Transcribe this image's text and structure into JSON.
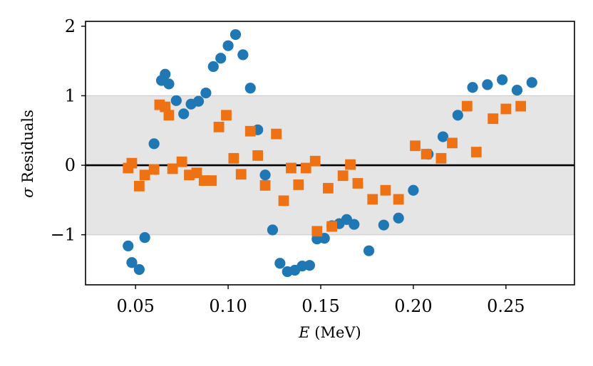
{
  "chart_data": {
    "type": "scatter",
    "title": "",
    "xlabel_var": "E",
    "xlabel_unit": " (MeV)",
    "ylabel_var": "σ",
    "ylabel_text": " Residuals",
    "xlim": [
      0.023,
      0.287
    ],
    "ylim": [
      -1.72,
      2.07
    ],
    "xticks": [
      0.05,
      0.1,
      0.15,
      0.2,
      0.25
    ],
    "xtick_labels": [
      "0.05",
      "0.10",
      "0.15",
      "0.20",
      "0.25"
    ],
    "yticks": [
      -1,
      0,
      1,
      2
    ],
    "ytick_labels": [
      "−1",
      "0",
      "1",
      "2"
    ],
    "band": [
      -1,
      1
    ],
    "band_color": "#e5e5e5",
    "zero_line": 0,
    "grid": false,
    "legend": "none",
    "series": [
      {
        "marker": "circle",
        "color": "#1f77b4",
        "points": [
          [
            0.046,
            -1.16
          ],
          [
            0.048,
            -1.4
          ],
          [
            0.052,
            -1.5
          ],
          [
            0.055,
            -1.04
          ],
          [
            0.06,
            0.31
          ],
          [
            0.064,
            1.22
          ],
          [
            0.066,
            1.31
          ],
          [
            0.068,
            1.17
          ],
          [
            0.072,
            0.93
          ],
          [
            0.076,
            0.74
          ],
          [
            0.08,
            0.88
          ],
          [
            0.084,
            0.92
          ],
          [
            0.088,
            1.04
          ],
          [
            0.092,
            1.42
          ],
          [
            0.096,
            1.54
          ],
          [
            0.1,
            1.72
          ],
          [
            0.104,
            1.88
          ],
          [
            0.108,
            1.59
          ],
          [
            0.112,
            1.11
          ],
          [
            0.116,
            0.51
          ],
          [
            0.12,
            -0.14
          ],
          [
            0.124,
            -0.93
          ],
          [
            0.128,
            -1.41
          ],
          [
            0.132,
            -1.53
          ],
          [
            0.136,
            -1.51
          ],
          [
            0.14,
            -1.45
          ],
          [
            0.144,
            -1.44
          ],
          [
            0.148,
            -1.06
          ],
          [
            0.152,
            -1.05
          ],
          [
            0.156,
            -0.87
          ],
          [
            0.16,
            -0.84
          ],
          [
            0.164,
            -0.78
          ],
          [
            0.168,
            -0.85
          ],
          [
            0.176,
            -1.23
          ],
          [
            0.184,
            -0.86
          ],
          [
            0.192,
            -0.76
          ],
          [
            0.2,
            -0.36
          ],
          [
            0.208,
            0.16
          ],
          [
            0.216,
            0.41
          ],
          [
            0.224,
            0.72
          ],
          [
            0.232,
            1.12
          ],
          [
            0.24,
            1.16
          ],
          [
            0.248,
            1.23
          ],
          [
            0.256,
            1.08
          ],
          [
            0.264,
            1.19
          ]
        ]
      },
      {
        "marker": "square",
        "color": "#ee7214",
        "points": [
          [
            0.046,
            -0.04
          ],
          [
            0.048,
            0.03
          ],
          [
            0.052,
            -0.3
          ],
          [
            0.055,
            -0.14
          ],
          [
            0.06,
            -0.06
          ],
          [
            0.063,
            0.87
          ],
          [
            0.066,
            0.84
          ],
          [
            0.068,
            0.72
          ],
          [
            0.07,
            -0.05
          ],
          [
            0.075,
            0.05
          ],
          [
            0.079,
            -0.14
          ],
          [
            0.083,
            -0.11
          ],
          [
            0.087,
            -0.22
          ],
          [
            0.091,
            -0.22
          ],
          [
            0.095,
            0.55
          ],
          [
            0.099,
            0.72
          ],
          [
            0.103,
            0.1
          ],
          [
            0.107,
            -0.13
          ],
          [
            0.112,
            0.49
          ],
          [
            0.116,
            0.14
          ],
          [
            0.12,
            -0.29
          ],
          [
            0.126,
            0.45
          ],
          [
            0.13,
            -0.51
          ],
          [
            0.134,
            -0.04
          ],
          [
            0.138,
            -0.28
          ],
          [
            0.142,
            -0.04
          ],
          [
            0.147,
            0.06
          ],
          [
            0.148,
            -0.95
          ],
          [
            0.154,
            -0.33
          ],
          [
            0.156,
            -0.88
          ],
          [
            0.162,
            -0.15
          ],
          [
            0.166,
            0.01
          ],
          [
            0.17,
            -0.26
          ],
          [
            0.178,
            -0.49
          ],
          [
            0.185,
            -0.36
          ],
          [
            0.192,
            -0.49
          ],
          [
            0.201,
            0.28
          ],
          [
            0.207,
            0.16
          ],
          [
            0.215,
            0.1
          ],
          [
            0.221,
            0.32
          ],
          [
            0.229,
            0.85
          ],
          [
            0.234,
            0.19
          ],
          [
            0.243,
            0.67
          ],
          [
            0.25,
            0.81
          ],
          [
            0.258,
            0.85
          ]
        ]
      }
    ]
  }
}
